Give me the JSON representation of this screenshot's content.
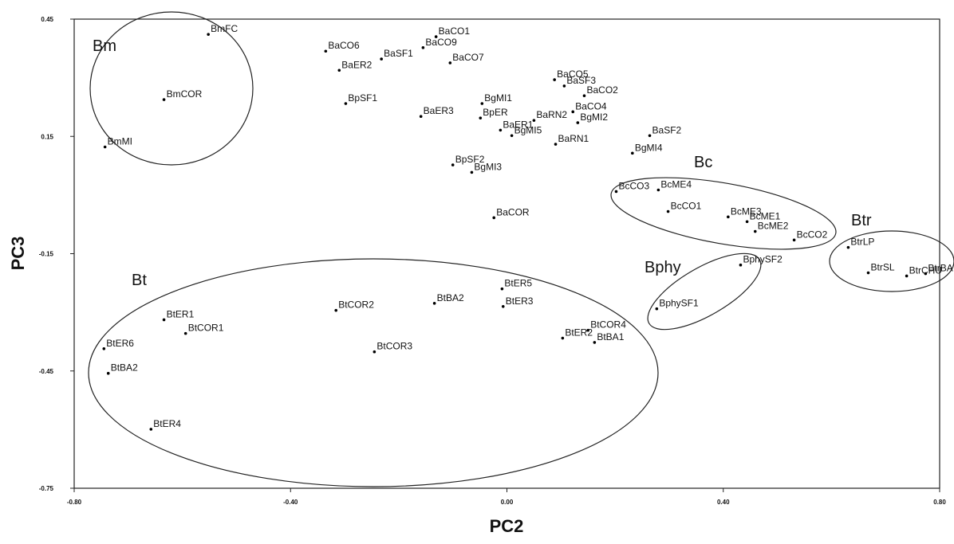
{
  "chart_data": {
    "type": "scatter",
    "x_label": "PC2",
    "y_label": "PC3",
    "xlim": [
      -0.8,
      0.8
    ],
    "ylim": [
      -0.75,
      0.45
    ],
    "xticks": [
      {
        "value": -0.8,
        "label": "-0.80"
      },
      {
        "value": -0.4,
        "label": "-0.40"
      },
      {
        "value": 0,
        "label": "0.00"
      },
      {
        "value": 0.4,
        "label": "0.40"
      },
      {
        "value": 0.8,
        "label": "0.80"
      }
    ],
    "yticks": [
      0.45,
      0.15,
      -0.15,
      -0.45,
      -0.75
    ],
    "color": "#000000",
    "groups": [
      "Bm",
      "Bt",
      "Bc",
      "Bphy",
      "Btr"
    ],
    "labels": [
      "BmFC",
      "BmCOR",
      "BmMI",
      "BaCO6",
      "BaER2",
      "BaSF1",
      "BaCO9",
      "BaCO1",
      "BaCO7",
      "BpSF1",
      "BaER3",
      "BgMI1",
      "BpER",
      "BaER1",
      "BaRN2",
      "BgMI5",
      "BaRN1",
      "BaCO5",
      "BaSF3",
      "BaCO2",
      "BaCO4",
      "BgMI2",
      "BaSF2",
      "BgMI4",
      "BpSF2",
      "BgMI3",
      "BaCOR",
      "BcCO3",
      "BcME4",
      "BcCO1",
      "BcME3",
      "BcME1",
      "BcME2",
      "BcCO2",
      "BtrLP",
      "BtrSL",
      "BtrCHU",
      "BtrBA",
      "BphySF2",
      "BphySF1",
      "BtER5",
      "BtER3",
      "BtBA2",
      "BtCOR2",
      "BtER1",
      "BtCOR1",
      "BtER6",
      "BtBA2",
      "BtCOR3",
      "BtCOR4",
      "BtER2",
      "BtBA1",
      "BtER4"
    ],
    "x": [
      -0.552,
      -0.634,
      -0.743,
      -0.335,
      -0.31,
      -0.232,
      -0.155,
      -0.131,
      -0.105,
      -0.298,
      -0.159,
      -0.046,
      -0.049,
      -0.012,
      0.05,
      0.009,
      0.09,
      0.088,
      0.106,
      0.143,
      0.122,
      0.131,
      0.264,
      0.232,
      -0.1,
      -0.065,
      -0.024,
      0.202,
      0.28,
      0.298,
      0.409,
      0.444,
      0.459,
      0.531,
      0.631,
      0.668,
      0.739,
      0.774,
      0.432,
      0.277,
      -0.009,
      -0.007,
      -0.134,
      -0.316,
      -0.634,
      -0.594,
      -0.745,
      -0.737,
      -0.245,
      0.15,
      0.103,
      0.162,
      -0.658
    ],
    "values": [
      0.411,
      0.244,
      0.123,
      0.368,
      0.319,
      0.348,
      0.377,
      0.405,
      0.338,
      0.234,
      0.201,
      0.234,
      0.197,
      0.166,
      0.191,
      0.152,
      0.13,
      0.295,
      0.279,
      0.254,
      0.213,
      0.185,
      0.152,
      0.107,
      0.077,
      0.058,
      -0.058,
      0.009,
      0.013,
      -0.042,
      -0.056,
      -0.068,
      -0.093,
      -0.115,
      -0.134,
      -0.199,
      -0.207,
      -0.201,
      -0.179,
      -0.291,
      -0.24,
      -0.285,
      -0.277,
      -0.295,
      -0.319,
      -0.354,
      -0.393,
      -0.456,
      -0.401,
      -0.346,
      -0.366,
      -0.377,
      -0.599
    ]
  }
}
